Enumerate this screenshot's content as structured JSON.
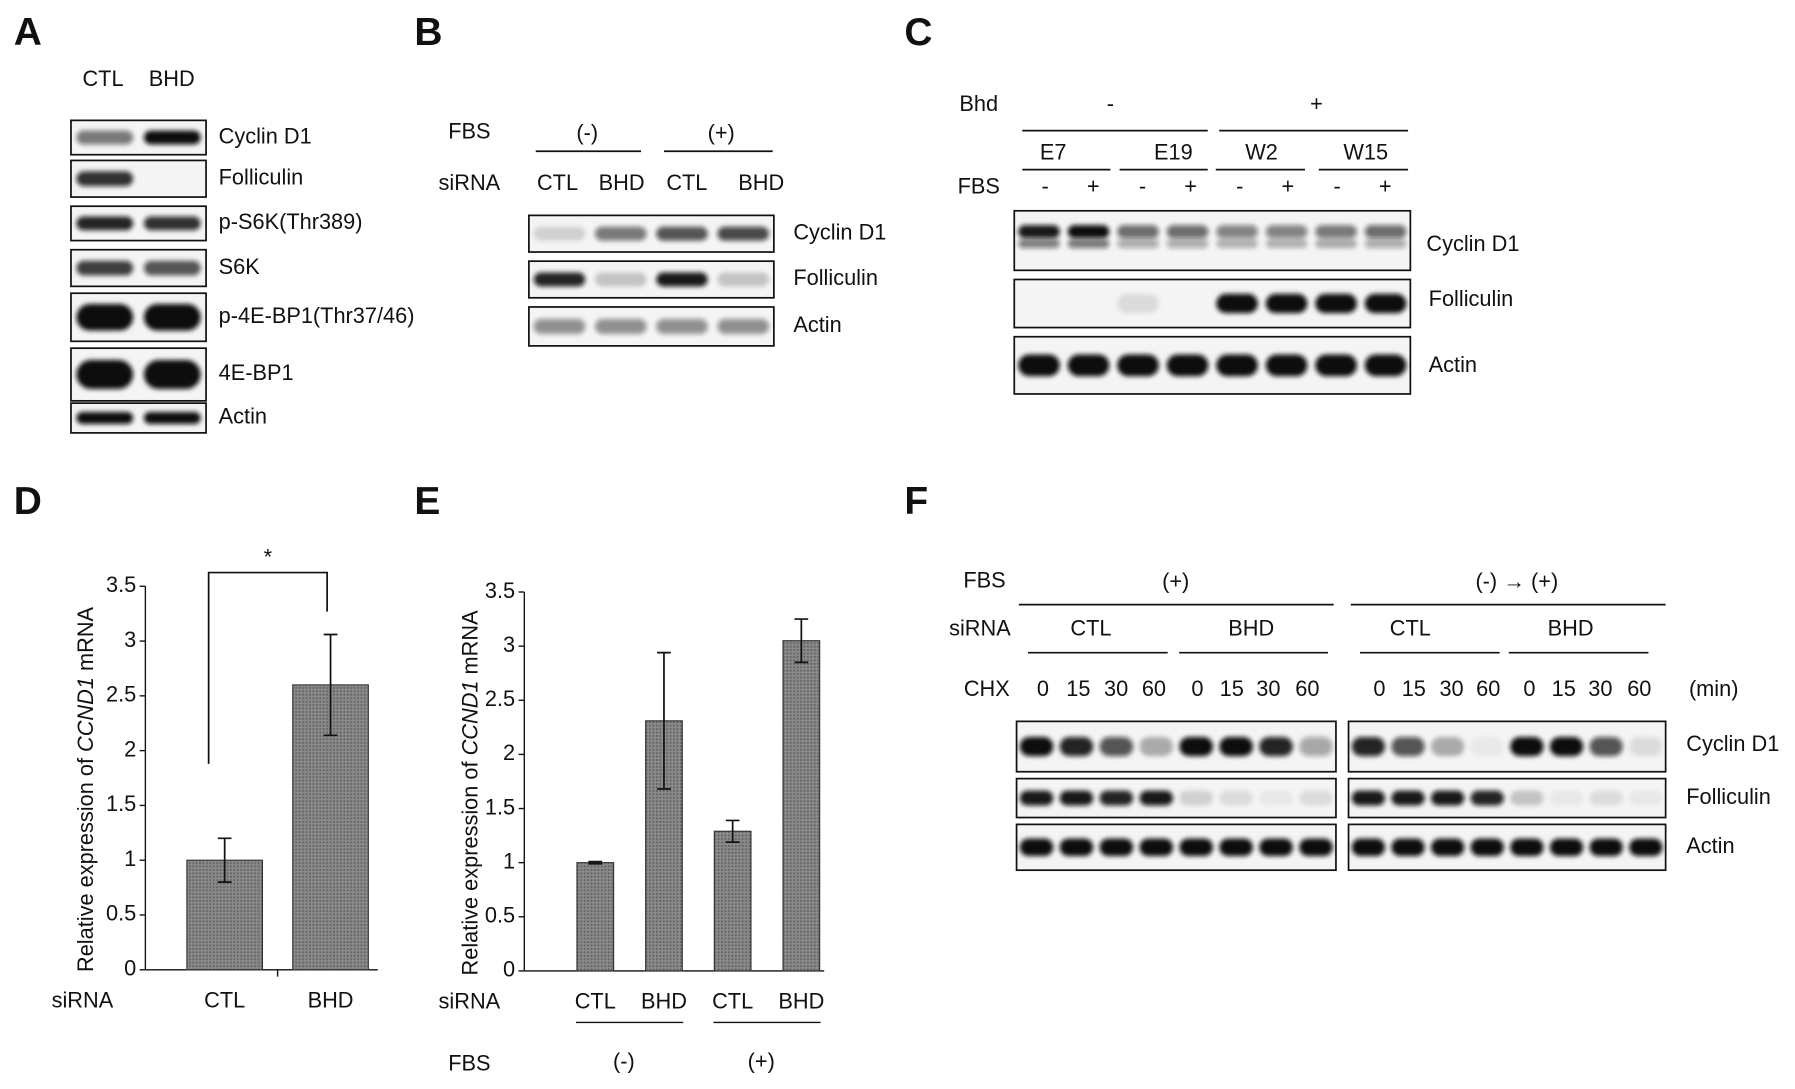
{
  "panels": [
    "A",
    "B",
    "C",
    "D",
    "E",
    "F"
  ],
  "blot_a": {
    "columns": [
      "CTL",
      "BHD"
    ],
    "rows": [
      "Cyclin D1",
      "Folliculin",
      "p-S6K(Thr389)",
      "S6K",
      "p-4E-BP1(Thr37/46)",
      "4E-BP1",
      "Actin"
    ]
  },
  "blot_b": {
    "fbs_label": "FBS",
    "fbs_groups": [
      "(-)",
      "(+)"
    ],
    "sirna_label": "siRNA",
    "sirna": [
      "CTL",
      "BHD",
      "CTL",
      "BHD"
    ],
    "rows": [
      "Cyclin D1",
      "Folliculin",
      "Actin"
    ]
  },
  "blot_c": {
    "bhd_label": "Bhd",
    "bhd_groups": [
      "-",
      "+"
    ],
    "samples": [
      "E7",
      "E19",
      "W2",
      "W15"
    ],
    "fbs_label": "FBS",
    "fbs": [
      "-",
      "+",
      "-",
      "+",
      "-",
      "+",
      "-",
      "+"
    ],
    "rows": [
      "Cyclin D1",
      "Folliculin",
      "Actin"
    ]
  },
  "blot_f": {
    "fbs_label": "FBS",
    "fbs_groups": [
      "(+)",
      "(-) → (+)"
    ],
    "sirna_label": "siRNA",
    "sirna": [
      "CTL",
      "BHD",
      "CTL",
      "BHD"
    ],
    "chx_label": "CHX",
    "chx": [
      "0",
      "15",
      "30",
      "60",
      "0",
      "15",
      "30",
      "60",
      "0",
      "15",
      "30",
      "60",
      "0",
      "15",
      "30",
      "60"
    ],
    "unit": "(min)",
    "rows": [
      "Cyclin D1",
      "Folliculin",
      "Actin"
    ]
  },
  "chart_data": [
    {
      "type": "bar",
      "y_label": [
        "Relative expression of ",
        "CCND1",
        " mRNA"
      ],
      "x_label": "siRNA",
      "categories": [
        "CTL",
        "BHD"
      ],
      "values": [
        1.0,
        2.6
      ],
      "errors": [
        0.2,
        0.46
      ],
      "color": "#7f7f7f",
      "ylim": [
        0,
        3.5
      ],
      "yticks": [
        0,
        0.5,
        1,
        1.5,
        2,
        2.5,
        3,
        3.5
      ],
      "annotation": "*"
    },
    {
      "type": "bar",
      "y_label": [
        "Relative expression of ",
        "CCND1",
        " mRNA"
      ],
      "x_label": "siRNA",
      "categories": [
        "CTL",
        "BHD",
        "CTL",
        "BHD"
      ],
      "values": [
        1.0,
        2.31,
        1.29,
        3.05
      ],
      "errors": [
        0.01,
        0.63,
        0.1,
        0.2
      ],
      "group_label": "FBS",
      "groups": [
        "(-)",
        "(+)"
      ],
      "color": "#6a6a6a",
      "ylim": [
        0,
        3.5
      ],
      "yticks": [
        0,
        0.5,
        1,
        1.5,
        2,
        2.5,
        3,
        3.5
      ]
    }
  ]
}
